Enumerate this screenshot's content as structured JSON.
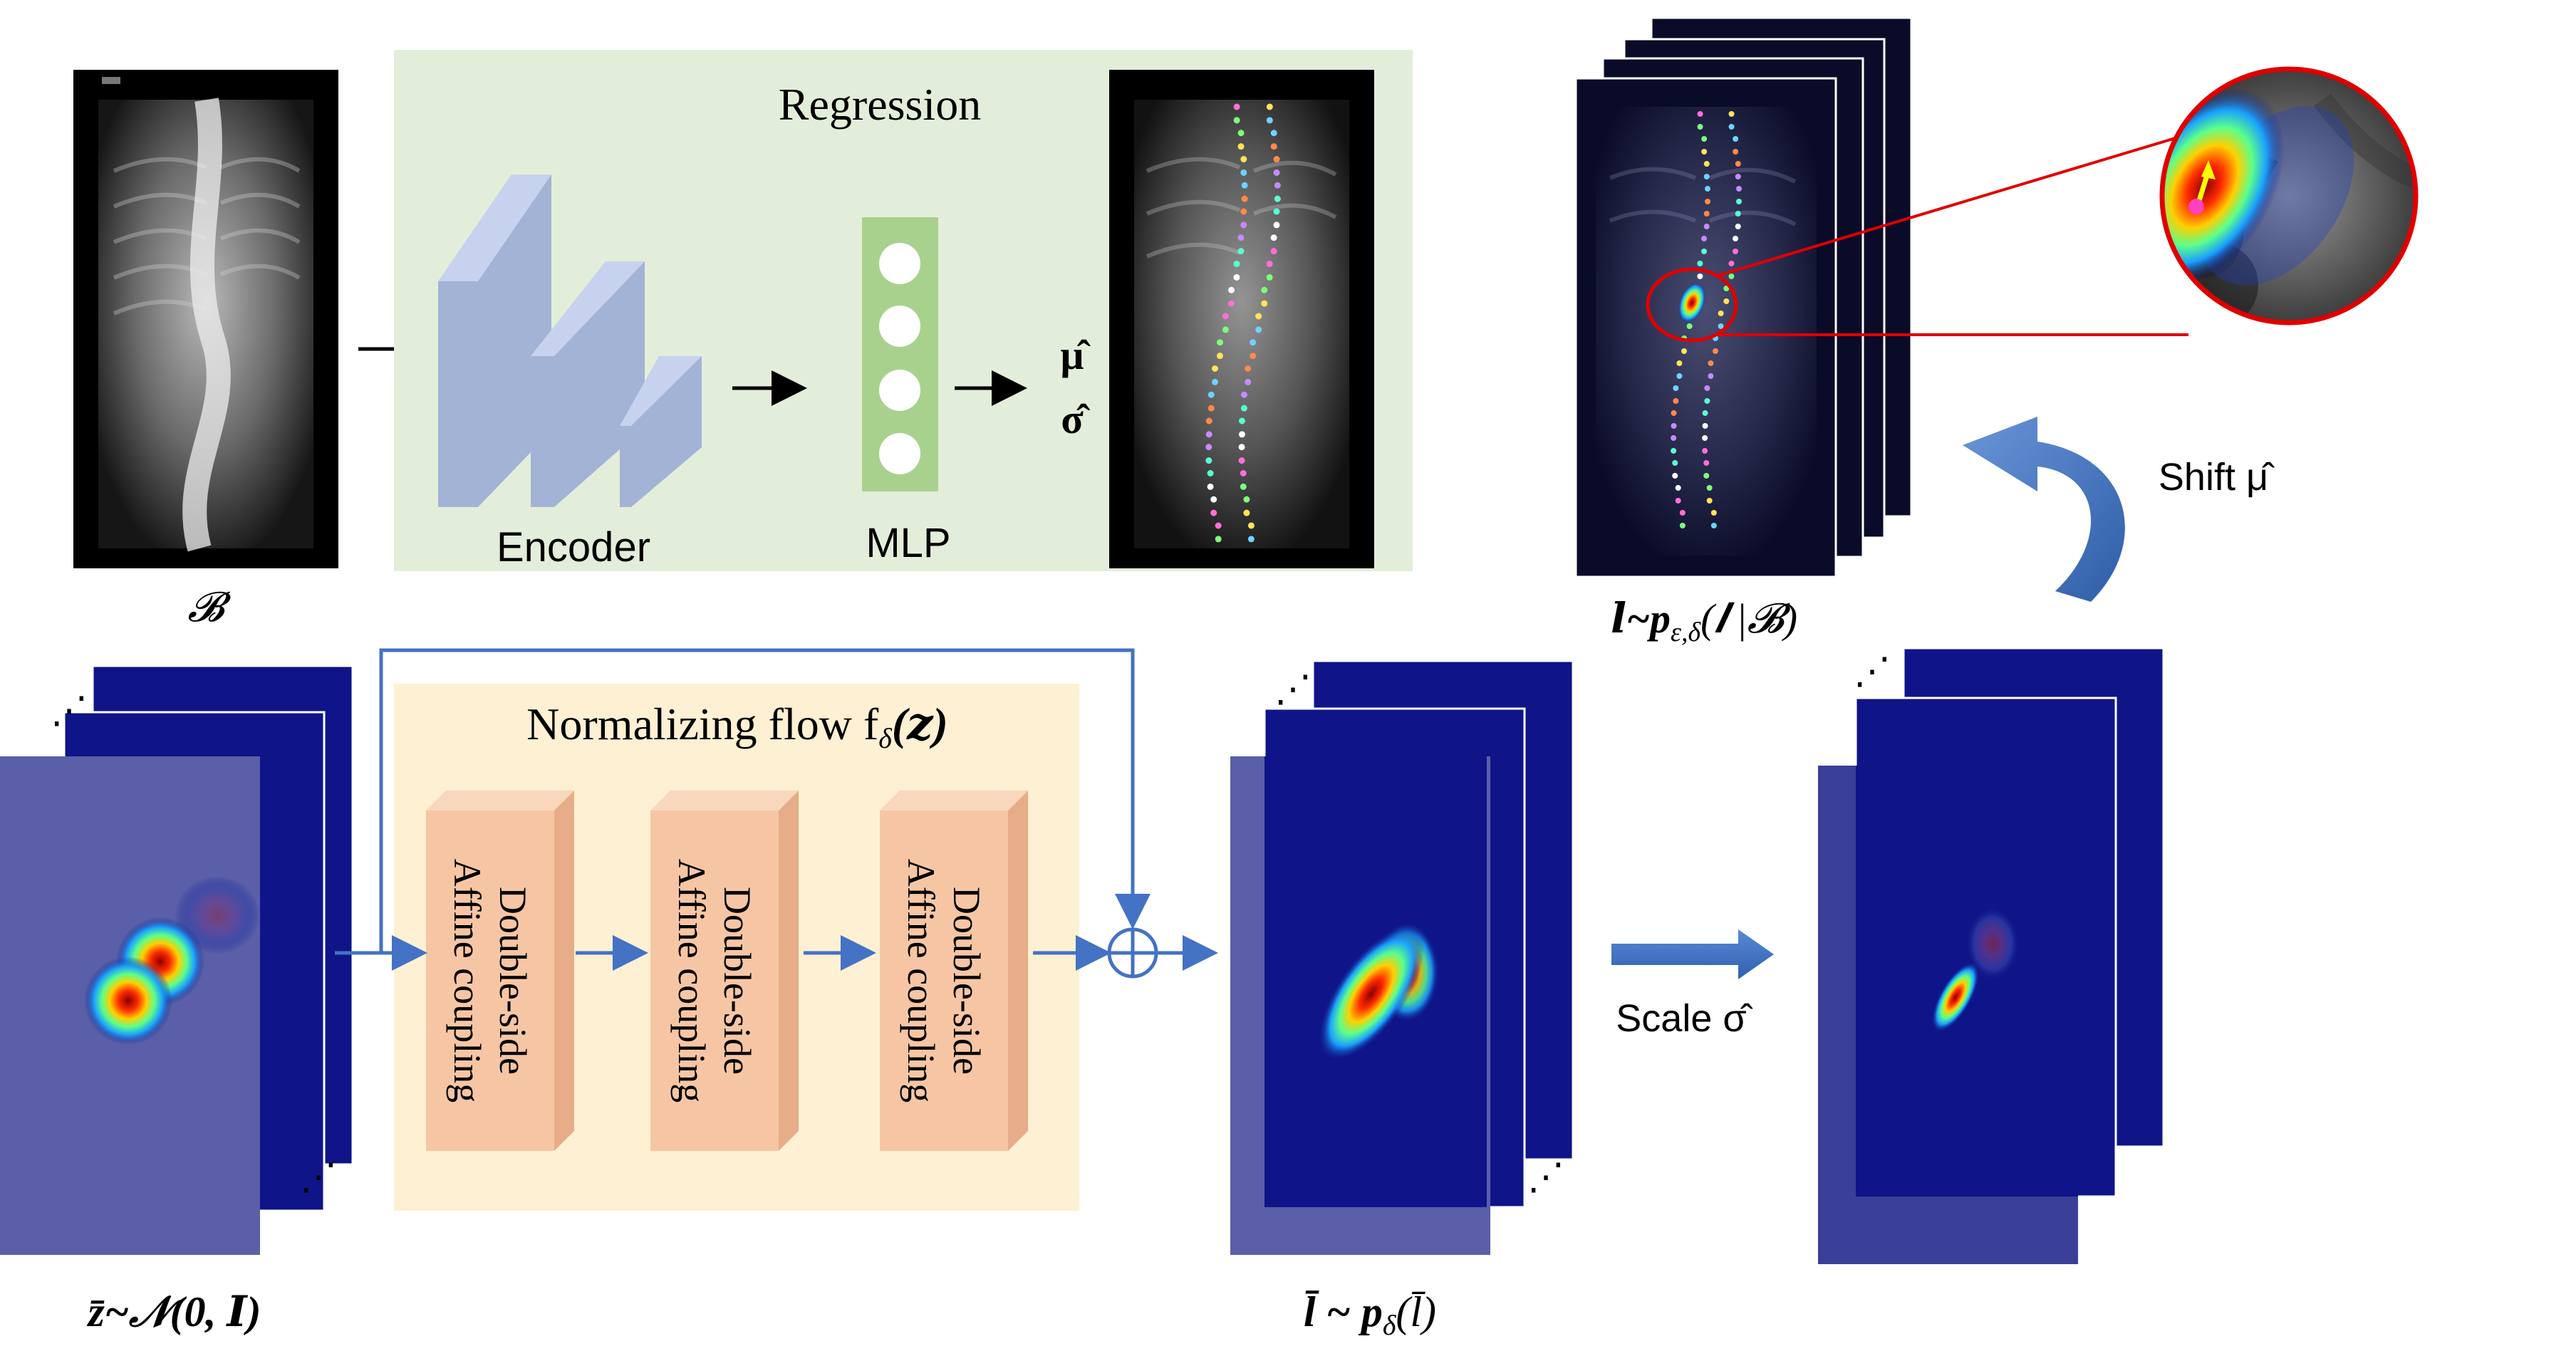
{
  "top": {
    "input_label": "𝓑",
    "regression_title": "Regression",
    "encoder_label": "Encoder",
    "mlp_label": "MLP",
    "mu_hat": "μ̂",
    "sigma_hat": "σ̂",
    "heatmap_stack_label": "𝒍~p",
    "heatmap_stack_sub": "ε,δ",
    "heatmap_stack_tail": "(𝒍 |𝓑)",
    "shift_label": "Shift μ̂"
  },
  "bottom": {
    "flow_title": "Normalizing flow f",
    "flow_title_sub": "δ",
    "flow_title_tail": "(𝒛)",
    "coupling_blocks": [
      {
        "line1": "Double-side",
        "line2": "Affine coupling"
      },
      {
        "line1": "Double-side",
        "line2": "Affine coupling"
      },
      {
        "line1": "Double-side",
        "line2": "Affine coupling"
      }
    ],
    "z_label": "z̄~𝒩(0, 𝑰)",
    "l_label": "l̄ ~ p",
    "l_label_sub": "δ",
    "l_label_tail": "(l̄)",
    "scale_label": "Scale σ̂",
    "ellipsis": "⋰",
    "ellipsis_bottom": "⋰"
  },
  "colors": {
    "regression_bg": "#e3eeda",
    "flow_bg": "#fdf0d3",
    "coupling_face": "#f6c6a4",
    "coupling_side": "#e6ad88",
    "encoder_face": "#a3b3d6",
    "encoder_side": "#b8c6e6",
    "mlp_green": "#a9d18e",
    "heatmap_navy": "#0f1488",
    "heatmap_back": "#5a5fa8",
    "arrow_blue": "#4472c4",
    "circle_red": "#e00000",
    "shift_arrow": "#3a6fc4"
  }
}
